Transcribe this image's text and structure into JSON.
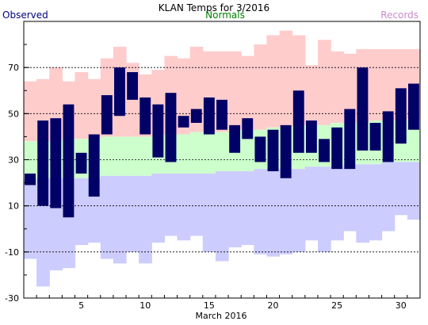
{
  "chart_data": {
    "type": "bar",
    "title": "KLAN Temps for 3/2016",
    "xlabel": "March 2016",
    "ylabel": "",
    "ylim": [
      -30,
      90
    ],
    "yticks": [
      -30,
      -10,
      10,
      30,
      50,
      70
    ],
    "xticks": [
      5,
      10,
      15,
      20,
      25,
      30
    ],
    "grid": "dashed horizontal at -10, 10, 30, 50, 70",
    "legend": {
      "observed": "Observed",
      "normals": "Normals",
      "records": "Records"
    },
    "colors": {
      "observed": "#000066",
      "normals": "#ccffcc",
      "records_high": "#ffcccc",
      "records_low": "#ccccff",
      "legend_observed": "#000080",
      "legend_normals": "#008000",
      "legend_records": "#cc88cc"
    },
    "days": [
      1,
      2,
      3,
      4,
      5,
      6,
      7,
      8,
      9,
      10,
      11,
      12,
      13,
      14,
      15,
      16,
      17,
      18,
      19,
      20,
      21,
      22,
      23,
      24,
      25,
      26,
      27,
      28,
      29,
      30,
      31
    ],
    "observed_high": [
      24,
      47,
      48,
      54,
      33,
      41,
      58,
      70,
      68,
      57,
      54,
      59,
      49,
      52,
      57,
      56,
      45,
      48,
      40,
      43,
      45,
      60,
      47,
      39,
      44,
      52,
      70,
      46,
      51,
      61,
      63
    ],
    "observed_low": [
      19,
      10,
      9,
      5,
      24,
      14,
      41,
      49,
      56,
      41,
      31,
      29,
      44,
      46,
      41,
      43,
      33,
      39,
      29,
      25,
      22,
      33,
      33,
      29,
      26,
      26,
      34,
      34,
      29,
      37,
      43
    ],
    "normal_high": [
      38,
      38,
      38,
      39,
      39,
      39,
      40,
      40,
      40,
      40,
      41,
      41,
      41,
      42,
      42,
      42,
      43,
      43,
      43,
      44,
      44,
      45,
      45,
      45,
      46,
      46,
      46,
      47,
      47,
      47,
      48
    ],
    "normal_low": [
      22,
      22,
      22,
      22,
      22,
      22,
      23,
      23,
      23,
      23,
      24,
      24,
      24,
      24,
      24,
      25,
      25,
      25,
      26,
      26,
      26,
      26,
      27,
      27,
      27,
      28,
      28,
      28,
      29,
      29,
      29
    ],
    "record_high": [
      64,
      65,
      70,
      64,
      68,
      65,
      74,
      79,
      72,
      67,
      69,
      75,
      74,
      79,
      77,
      77,
      77,
      75,
      80,
      84,
      86,
      84,
      71,
      82,
      77,
      76,
      78,
      78,
      78,
      78,
      78
    ],
    "record_low": [
      -13,
      -25,
      -18,
      -17,
      -7,
      -6,
      -13,
      -15,
      -10,
      -15,
      -6,
      -3,
      -5,
      -3,
      -10,
      -14,
      -8,
      -7,
      -11,
      -12,
      -11,
      -10,
      -5,
      -10,
      -5,
      -1,
      -6,
      -5,
      -1,
      6,
      4
    ]
  }
}
